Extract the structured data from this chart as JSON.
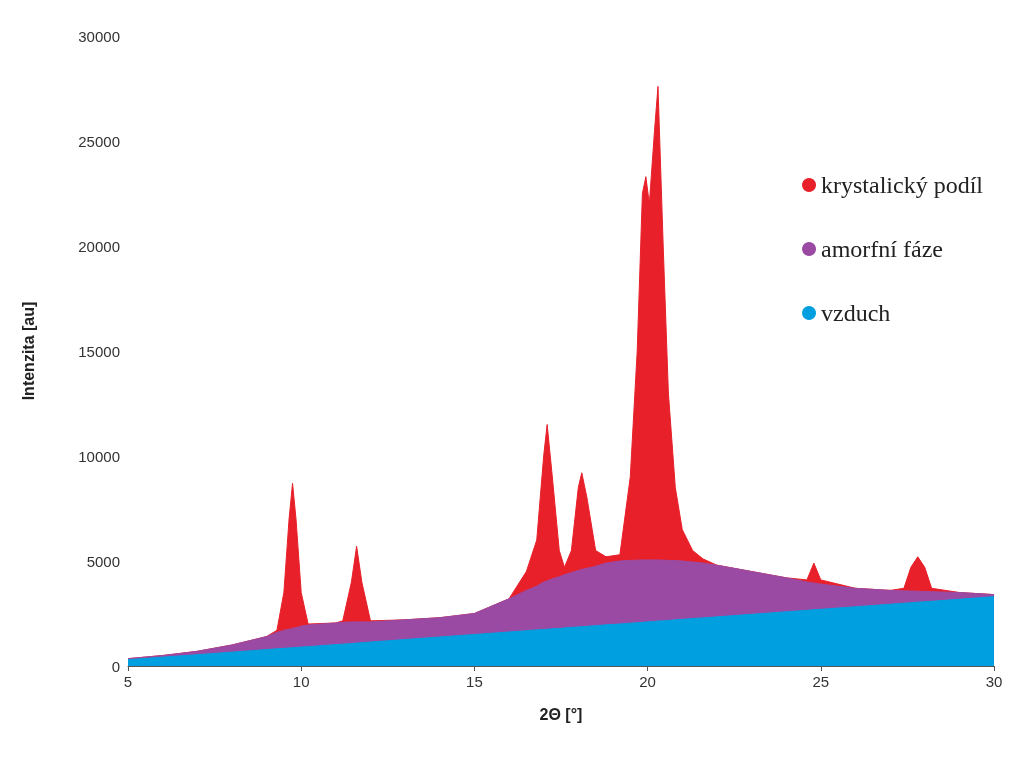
{
  "chart_data": {
    "type": "area",
    "stacked": true,
    "xlabel": "2Θ [°]",
    "ylabel": "Intenzita [au]",
    "x": [
      5,
      6,
      7,
      8,
      9,
      9.3,
      9.5,
      9.65,
      9.75,
      9.85,
      10,
      10.2,
      11,
      11.2,
      11.45,
      11.6,
      11.75,
      12,
      13,
      14,
      15,
      16,
      16.5,
      16.8,
      17,
      17.1,
      17.25,
      17.45,
      17.6,
      17.8,
      18,
      18.1,
      18.25,
      18.5,
      18.8,
      19.2,
      19.5,
      19.7,
      19.85,
      19.95,
      20.05,
      20.2,
      20.3,
      20.45,
      20.6,
      20.8,
      21,
      21.3,
      21.6,
      22,
      23,
      24,
      24.6,
      24.8,
      25,
      26,
      27,
      27.4,
      27.6,
      27.8,
      28,
      28.2,
      29,
      30
    ],
    "series": [
      {
        "name": "vzduch",
        "color": "#00a0e0",
        "values": [
          300,
          420,
          540,
          660,
          780,
          820,
          840,
          860,
          870,
          880,
          900,
          920,
          1020,
          1040,
          1070,
          1090,
          1110,
          1140,
          1260,
          1380,
          1500,
          1620,
          1680,
          1720,
          1740,
          1750,
          1770,
          1790,
          1810,
          1840,
          1860,
          1870,
          1890,
          1920,
          1960,
          2000,
          2040,
          2060,
          2080,
          2090,
          2110,
          2120,
          2140,
          2150,
          2170,
          2200,
          2220,
          2260,
          2290,
          2340,
          2460,
          2580,
          2650,
          2680,
          2700,
          2820,
          2940,
          2990,
          3010,
          3040,
          3060,
          3080,
          3180,
          3300
        ]
      },
      {
        "name": "amorfní fáze",
        "color": "#9b4aa3",
        "values": [
          50,
          80,
          160,
          340,
          620,
          780,
          860,
          890,
          930,
          940,
          1000,
          1030,
          1030,
          1040,
          1030,
          1010,
          990,
          960,
          940,
          920,
          1000,
          1580,
          1920,
          2080,
          2260,
          2300,
          2380,
          2460,
          2540,
          2610,
          2690,
          2730,
          2760,
          2830,
          2940,
          3000,
          2990,
          2980,
          2970,
          2960,
          2940,
          2930,
          2910,
          2890,
          2860,
          2820,
          2780,
          2690,
          2610,
          2460,
          2040,
          1620,
          1350,
          1270,
          1200,
          880,
          660,
          590,
          560,
          520,
          490,
          460,
          320,
          100
        ]
      },
      {
        "name": "krystalický podíl",
        "color": "#e8202a",
        "values": [
          0,
          0,
          0,
          0,
          0,
          100,
          1800,
          5250,
          6900,
          5180,
          1600,
          50,
          0,
          70,
          1900,
          3600,
          1900,
          50,
          0,
          0,
          0,
          0,
          900,
          2200,
          6000,
          7450,
          4850,
          1250,
          350,
          1050,
          3950,
          4600,
          3350,
          750,
          300,
          300,
          3970,
          9960,
          17450,
          18250,
          16950,
          20450,
          22550,
          14960,
          7970,
          3480,
          1500,
          550,
          200,
          0,
          0,
          0,
          100,
          950,
          200,
          0,
          0,
          120,
          1130,
          1640,
          1150,
          160,
          0,
          0
        ]
      }
    ],
    "xlim": [
      5,
      30
    ],
    "xticks": [
      5,
      10,
      15,
      20,
      25,
      30
    ],
    "ylim": [
      0,
      30000
    ],
    "yticks": [
      0,
      5000,
      10000,
      15000,
      20000,
      25000,
      30000
    ],
    "grid": false,
    "legend": "right",
    "marker": "none"
  }
}
